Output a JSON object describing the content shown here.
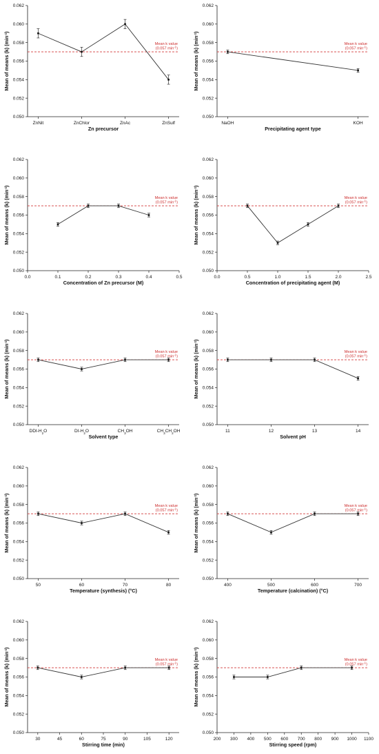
{
  "chart_data": [
    {
      "type": "line",
      "x_kind": "category",
      "categories": [
        "ZnNit",
        "ZnChlor",
        "ZnAc",
        "ZnSulf"
      ],
      "values": [
        0.059,
        0.057,
        0.06,
        0.054
      ],
      "errors": [
        0.0005,
        0.0005,
        0.0005,
        0.0005
      ],
      "xlabel": "Zn precursor",
      "ylabel": "Mean of means (k) (min-1)",
      "ylim": [
        0.05,
        0.062
      ],
      "yticks": [
        "0.050",
        "0.052",
        "0.054",
        "0.056",
        "0.058",
        "0.060",
        "0.062"
      ],
      "reference": {
        "value": 0.057,
        "label": "Mean k value",
        "sublabel": "(0.057 min-1)"
      },
      "grid": false
    },
    {
      "type": "line",
      "x_kind": "category",
      "categories": [
        "NaOH",
        "KOH"
      ],
      "values": [
        0.057,
        0.055
      ],
      "errors": [
        0.0002,
        0.0002
      ],
      "xlabel": "Precipitating agent type",
      "ylabel": "Mean of means (k) (min-1)",
      "ylim": [
        0.05,
        0.062
      ],
      "yticks": [
        "0.050",
        "0.052",
        "0.054",
        "0.056",
        "0.058",
        "0.060",
        "0.062"
      ],
      "reference": {
        "value": 0.057,
        "label": "Mean k value",
        "sublabel": "(0.057 min-1)"
      },
      "grid": false
    },
    {
      "type": "line",
      "x_kind": "numeric",
      "x": [
        0.1,
        0.2,
        0.3,
        0.4
      ],
      "values": [
        0.055,
        0.057,
        0.057,
        0.056
      ],
      "errors": [
        0.0002,
        0.0002,
        0.0002,
        0.0002
      ],
      "xlim": [
        0.0,
        0.5
      ],
      "xticks": [
        "0.0",
        "0.1",
        "0.2",
        "0.3",
        "0.4",
        "0.5"
      ],
      "xlabel": "Concentration of Zn precursor (M)",
      "ylabel": "Mean of means (k) (min-1)",
      "ylim": [
        0.05,
        0.062
      ],
      "yticks": [
        "0.050",
        "0.052",
        "0.054",
        "0.056",
        "0.058",
        "0.060",
        "0.062"
      ],
      "reference": {
        "value": 0.057,
        "label": "Mean k value",
        "sublabel": "(0.057 min-1)"
      },
      "grid": false
    },
    {
      "type": "line",
      "x_kind": "numeric",
      "x": [
        0.5,
        1.0,
        1.5,
        2.0
      ],
      "values": [
        0.057,
        0.053,
        0.055,
        0.057
      ],
      "errors": [
        0.0002,
        0.0002,
        0.0002,
        0.0002
      ],
      "xlim": [
        0.0,
        2.5
      ],
      "xticks": [
        "0.0",
        "0.5",
        "1.0",
        "1.5",
        "2.0",
        "2.5"
      ],
      "xlabel": "Concentration of precipitating agent (M)",
      "ylabel": "Mean of means (k) (min-1)",
      "ylim": [
        0.05,
        0.062
      ],
      "yticks": [
        "0.050",
        "0.052",
        "0.054",
        "0.056",
        "0.058",
        "0.060",
        "0.062"
      ],
      "reference": {
        "value": 0.057,
        "label": "Mean k value",
        "sublabel": "(0.057 min-1)"
      },
      "grid": false
    },
    {
      "type": "line",
      "x_kind": "category",
      "categories": [
        "DDI-H2O",
        "DI-H2O",
        "CH3OH",
        "CH3CH2OH"
      ],
      "values": [
        0.057,
        0.056,
        0.057,
        0.057
      ],
      "errors": [
        0.0002,
        0.0002,
        0.0002,
        0.0002
      ],
      "xlabel": "Solvent type",
      "ylabel": "Mean of means (k) (min-1)",
      "ylim": [
        0.05,
        0.062
      ],
      "yticks": [
        "0.050",
        "0.052",
        "0.054",
        "0.056",
        "0.058",
        "0.060",
        "0.062"
      ],
      "reference": {
        "value": 0.057,
        "label": "Mean k value",
        "sublabel": "(0.057 min-1)"
      },
      "grid": false
    },
    {
      "type": "line",
      "x_kind": "category",
      "categories": [
        "11",
        "12",
        "13",
        "14"
      ],
      "values": [
        0.057,
        0.057,
        0.057,
        0.055
      ],
      "errors": [
        0.0002,
        0.0002,
        0.0002,
        0.0002
      ],
      "xlabel": "Solvent pH",
      "ylabel": "Mean of means (k) (min-1)",
      "ylim": [
        0.05,
        0.062
      ],
      "yticks": [
        "0.050",
        "0.052",
        "0.054",
        "0.056",
        "0.058",
        "0.060",
        "0.062"
      ],
      "reference": {
        "value": 0.057,
        "label": "Mean k value",
        "sublabel": "(0.057 min-1)"
      },
      "grid": false
    },
    {
      "type": "line",
      "x_kind": "category",
      "categories": [
        "50",
        "60",
        "70",
        "80"
      ],
      "values": [
        0.057,
        0.056,
        0.057,
        0.055
      ],
      "errors": [
        0.0002,
        0.0002,
        0.0002,
        0.0002
      ],
      "xlabel": "Temperature (synthesis) (°C)",
      "ylabel": "Mean of means (k) (min-1)",
      "ylim": [
        0.05,
        0.062
      ],
      "yticks": [
        "0.050",
        "0.052",
        "0.054",
        "0.056",
        "0.058",
        "0.060",
        "0.062"
      ],
      "reference": {
        "value": 0.057,
        "label": "Mean k value",
        "sublabel": "(0.057 min-1)"
      },
      "grid": false
    },
    {
      "type": "line",
      "x_kind": "category",
      "categories": [
        "400",
        "500",
        "600",
        "700"
      ],
      "values": [
        0.057,
        0.055,
        0.057,
        0.057
      ],
      "errors": [
        0.0002,
        0.0002,
        0.0002,
        0.0002
      ],
      "xlabel": "Temperature (calcination) (°C)",
      "ylabel": "Mean of means (k) (min-1)",
      "ylim": [
        0.05,
        0.062
      ],
      "yticks": [
        "0.050",
        "0.052",
        "0.054",
        "0.056",
        "0.058",
        "0.060",
        "0.062"
      ],
      "reference": {
        "value": 0.057,
        "label": "Mean k value",
        "sublabel": "(0.057 min-1)"
      },
      "grid": false
    },
    {
      "type": "line",
      "x_kind": "numeric",
      "x": [
        30,
        60,
        90,
        120
      ],
      "values": [
        0.057,
        0.056,
        0.057,
        0.057
      ],
      "errors": [
        0.0002,
        0.0002,
        0.0002,
        0.0002
      ],
      "xlim": [
        23,
        127
      ],
      "xticks": [
        "30",
        "45",
        "60",
        "75",
        "90",
        "105",
        "120"
      ],
      "xlabel": "Stirring time (min)",
      "ylabel": "Mean of means (k) (min-1)",
      "ylim": [
        0.05,
        0.062
      ],
      "yticks": [
        "0.050",
        "0.052",
        "0.054",
        "0.056",
        "0.058",
        "0.060",
        "0.062"
      ],
      "reference": {
        "value": 0.057,
        "label": "Mean k value",
        "sublabel": "(0.057 min-1)"
      },
      "grid": false
    },
    {
      "type": "line",
      "x_kind": "numeric",
      "x": [
        300,
        500,
        700,
        1000
      ],
      "values": [
        0.056,
        0.056,
        0.057,
        0.057
      ],
      "errors": [
        0.0002,
        0.0002,
        0.0002,
        0.0002
      ],
      "xlim": [
        200,
        1100
      ],
      "xticks": [
        "200",
        "300",
        "400",
        "500",
        "600",
        "700",
        "800",
        "900",
        "1000",
        "1100"
      ],
      "xlabel": "Stirring speed (rpm)",
      "ylabel": "Mean of means (k) (min-1)",
      "ylim": [
        0.05,
        0.062
      ],
      "yticks": [
        "0.050",
        "0.052",
        "0.054",
        "0.056",
        "0.058",
        "0.060",
        "0.062"
      ],
      "reference": {
        "value": 0.057,
        "label": "Mean k value",
        "sublabel": "(0.057 min-1)"
      },
      "grid": false
    }
  ]
}
